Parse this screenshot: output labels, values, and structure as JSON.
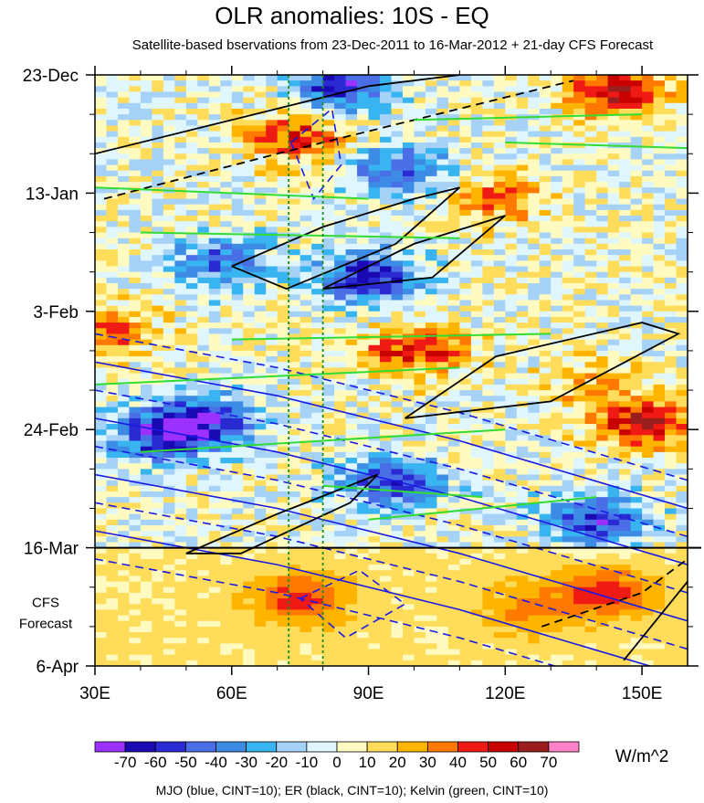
{
  "chart_data": {
    "type": "heatmap",
    "title": "OLR anomalies: 10S - EQ",
    "subtitle": "Satellite-based bservations from 23-Dec-2011 to 16-Mar-2012 + 21-day CFS Forecast",
    "footer": "MJO (blue, CINT=10); ER (black, CINT=10); Kelvin (green, CINT=10)",
    "x_axis": {
      "range": [
        30,
        160
      ],
      "ticks": [
        {
          "value": 30,
          "label": "30E"
        },
        {
          "value": 60,
          "label": "60E"
        },
        {
          "value": 90,
          "label": "90E"
        },
        {
          "value": 120,
          "label": "120E"
        },
        {
          "value": 150,
          "label": "150E"
        }
      ]
    },
    "y_axis": {
      "range_days": [
        0,
        105
      ],
      "ticks": [
        {
          "day": 0,
          "label": "23-Dec"
        },
        {
          "day": 21,
          "label": "13-Jan"
        },
        {
          "day": 42,
          "label": "3-Feb"
        },
        {
          "day": 63,
          "label": "24-Feb"
        },
        {
          "day": 84,
          "label": "16-Mar"
        },
        {
          "day": 105,
          "label": "6-Apr"
        }
      ]
    },
    "forecast_label": [
      "CFS",
      "Forecast"
    ],
    "forecast_start_day": 84,
    "reference_longitudes": [
      72.5,
      80
    ],
    "colorbar": {
      "units": "W/m^2",
      "labels": [
        "-70",
        "-60",
        "-50",
        "-40",
        "-30",
        "-20",
        "-10",
        "0",
        "10",
        "20",
        "30",
        "40",
        "50",
        "60",
        "70"
      ],
      "colors": [
        "#9b30ff",
        "#1a0ab4",
        "#2a2ad2",
        "#4a6ee6",
        "#3c8ce6",
        "#38b4f0",
        "#a6d2f8",
        "#def6fc",
        "#fffbc0",
        "#ffdc5a",
        "#ffb400",
        "#ff7800",
        "#f01a14",
        "#c80000",
        "#9b1e1e",
        "#ff82c8"
      ]
    },
    "anomaly_features": [
      {
        "lon": 84,
        "day": 2,
        "value": -60
      },
      {
        "lon": 145,
        "day": 3,
        "value": 55
      },
      {
        "lon": 74,
        "day": 11,
        "value": 45
      },
      {
        "lon": 97,
        "day": 17,
        "value": -45
      },
      {
        "lon": 118,
        "day": 22,
        "value": 35
      },
      {
        "lon": 90,
        "day": 36,
        "value": -65
      },
      {
        "lon": 58,
        "day": 33,
        "value": -40
      },
      {
        "lon": 32,
        "day": 45,
        "value": 40
      },
      {
        "lon": 100,
        "day": 49,
        "value": 50
      },
      {
        "lon": 140,
        "day": 55,
        "value": 25
      },
      {
        "lon": 150,
        "day": 62,
        "value": 55
      },
      {
        "lon": 55,
        "day": 61,
        "value": -50
      },
      {
        "lon": 45,
        "day": 64,
        "value": -65
      },
      {
        "lon": 95,
        "day": 72,
        "value": -55
      },
      {
        "lon": 140,
        "day": 79,
        "value": -55
      },
      {
        "lon": 75,
        "day": 93,
        "value": 40
      },
      {
        "lon": 125,
        "day": 95,
        "value": 25
      },
      {
        "lon": 143,
        "day": 92,
        "value": 40
      }
    ],
    "contours": {
      "mjo": {
        "color": "blue",
        "interval": 10
      },
      "er": {
        "color": "black",
        "interval": 10
      },
      "kelvin": {
        "color": "green",
        "interval": 10
      }
    }
  }
}
